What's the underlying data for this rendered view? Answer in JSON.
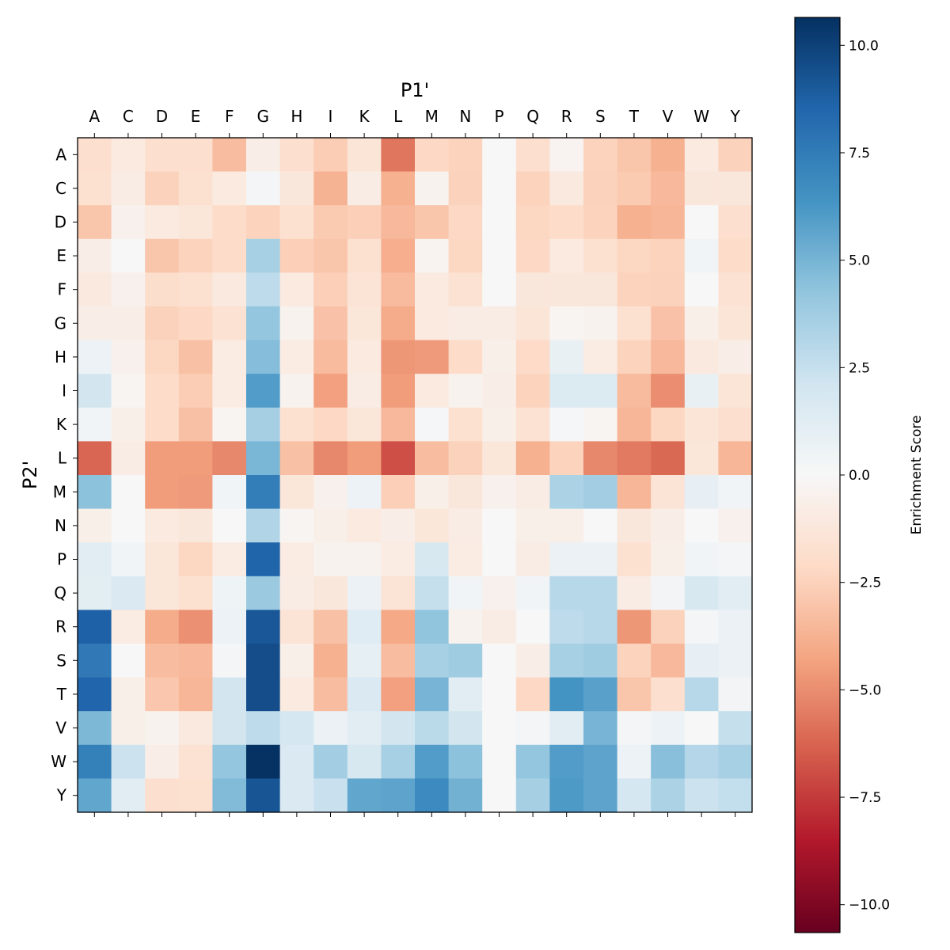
{
  "chart_data": {
    "type": "heatmap",
    "title": "",
    "xlabel": "P1'",
    "ylabel": "P2'",
    "x_categories": [
      "A",
      "C",
      "D",
      "E",
      "F",
      "G",
      "H",
      "I",
      "K",
      "L",
      "M",
      "N",
      "P",
      "Q",
      "R",
      "S",
      "T",
      "V",
      "W",
      "Y"
    ],
    "y_categories": [
      "A",
      "C",
      "D",
      "E",
      "F",
      "G",
      "H",
      "I",
      "K",
      "L",
      "M",
      "N",
      "P",
      "Q",
      "R",
      "S",
      "T",
      "V",
      "W",
      "Y"
    ],
    "x_axis_position": "top",
    "colormap": "RdBu",
    "vmin": -10.65,
    "vmax": 10.65,
    "colorbar": {
      "label": "Enrichment Score",
      "ticks": [
        10.0,
        7.5,
        5.0,
        2.5,
        0.0,
        -2.5,
        -5.0,
        -7.5,
        -10.0
      ],
      "tick_labels": [
        "10.0",
        "7.5",
        "5.0",
        "2.5",
        "0.0",
        "−2.5",
        "−5.0",
        "−7.5",
        "−10.0"
      ]
    },
    "values": [
      [
        -1.8,
        -1,
        -1.8,
        -1.8,
        -3.3,
        -0.7,
        -1.8,
        -2.7,
        -1.4,
        -5.7,
        -2.2,
        -2.4,
        0,
        -1.8,
        -0.3,
        -2.4,
        -3,
        -3.8,
        -1,
        -2.5
      ],
      [
        -1.7,
        -0.8,
        -2.5,
        -1.7,
        -1,
        0.2,
        -1.2,
        -3.7,
        -0.8,
        -3.8,
        -0.4,
        -2.5,
        0,
        -2.4,
        -1.1,
        -2.5,
        -2.8,
        -3.5,
        -1.2,
        -1.2
      ],
      [
        -3,
        -0.5,
        -1,
        -1.3,
        -2,
        -2.4,
        -1.7,
        -2.8,
        -2.6,
        -3.5,
        -3,
        -2.2,
        0,
        -2.3,
        -2,
        -2.4,
        -3.8,
        -3.6,
        0,
        -1.8
      ],
      [
        -0.7,
        0,
        -3,
        -2.4,
        -2,
        3.5,
        -2.6,
        -3,
        -1.7,
        -3.9,
        -0.3,
        -2.3,
        0,
        -2.2,
        -1,
        -1.7,
        -2.3,
        -2.4,
        0.4,
        -2
      ],
      [
        -1.1,
        -0.5,
        -1.9,
        -1.7,
        -1.1,
        2.8,
        -1,
        -2.6,
        -1.5,
        -3.4,
        -1,
        -1.6,
        0,
        -1.2,
        -1.2,
        -1.2,
        -2.4,
        -2.5,
        0,
        -1.6
      ],
      [
        -0.7,
        -0.7,
        -2.5,
        -2.2,
        -1.6,
        4.2,
        -0.4,
        -3.1,
        -1.3,
        -4,
        -1,
        -0.8,
        -0.8,
        -1.4,
        -0.2,
        -0.4,
        -1.7,
        -3.1,
        -0.6,
        -1.4
      ],
      [
        0.6,
        -0.5,
        -2.3,
        -3.2,
        -0.9,
        4.6,
        -0.9,
        -3.4,
        -1,
        -4.7,
        -4.6,
        -2,
        -0.6,
        -2.1,
        0.8,
        -0.9,
        -2.4,
        -3.5,
        -1.1,
        -0.7
      ],
      [
        2,
        -0.2,
        -2,
        -2.7,
        -0.9,
        6,
        -0.4,
        -4.4,
        -0.8,
        -4.5,
        -1,
        -0.4,
        -0.7,
        -2.4,
        1.5,
        1.5,
        -3.4,
        -5,
        0.8,
        -1.4
      ],
      [
        0.4,
        -0.6,
        -2,
        -3.2,
        -0.2,
        3.6,
        -1.7,
        -2.2,
        -1.3,
        -3.5,
        0.1,
        -1.7,
        -0.6,
        -1.6,
        0.1,
        -0.2,
        -3.6,
        -2.3,
        -1.4,
        -1.8
      ],
      [
        -6.2,
        -0.8,
        -4.5,
        -4.5,
        -5.2,
        4.9,
        -3.2,
        -5.2,
        -4.5,
        -6.9,
        -3.3,
        -2.5,
        -1.3,
        -3.8,
        -2.4,
        -5.2,
        -5.6,
        -6.1,
        -1.3,
        -3.6
      ],
      [
        4.4,
        0,
        -4.5,
        -4.6,
        0.4,
        7.4,
        -1.3,
        -0.5,
        0.6,
        -2.6,
        -0.6,
        -1.2,
        -0.5,
        -0.8,
        3.4,
        3.7,
        -3.6,
        -1.5,
        0.9,
        0.4
      ],
      [
        -0.6,
        0,
        -1,
        -1.2,
        0,
        3.2,
        -0.2,
        -0.6,
        -1,
        -0.7,
        -1.3,
        -0.8,
        0,
        -0.6,
        -0.6,
        0,
        -1.2,
        -0.7,
        0,
        -0.5
      ],
      [
        1.2,
        0.4,
        -1.3,
        -2.3,
        -0.9,
        8.6,
        -0.9,
        -0.4,
        -0.4,
        -0.9,
        1.8,
        -0.9,
        0,
        -0.8,
        0.7,
        0.7,
        -1.7,
        -0.6,
        0.4,
        0.2
      ],
      [
        1.1,
        1.6,
        -1.3,
        -1.7,
        0.5,
        4,
        -0.8,
        -1.2,
        0.7,
        -1.5,
        2.5,
        0.4,
        -0.5,
        0.4,
        3,
        3,
        -0.8,
        0.3,
        1.8,
        1.2
      ],
      [
        8.7,
        -0.9,
        -4,
        -4.9,
        0.6,
        9.1,
        -1.5,
        -3.2,
        1.3,
        -4.1,
        4.3,
        -0.4,
        -0.8,
        0,
        2.8,
        3,
        -4.7,
        -2.5,
        0.2,
        0.7
      ],
      [
        7.6,
        0,
        -3.3,
        -3.5,
        0.2,
        9.5,
        -0.6,
        -3.8,
        1,
        -3.3,
        3.5,
        3.8,
        0,
        -0.7,
        3.5,
        3.8,
        -2.4,
        -3.5,
        0.9,
        0.7
      ],
      [
        8.5,
        -0.6,
        -2.9,
        -3.6,
        2,
        9.5,
        -1,
        -3.3,
        1.6,
        -4.4,
        5,
        1.2,
        0,
        -2.2,
        6.4,
        5.8,
        -3,
        -1.8,
        3,
        0.3
      ],
      [
        4.8,
        -0.6,
        -0.4,
        -1.1,
        2,
        2.8,
        1.9,
        0.7,
        1.2,
        2,
        2.9,
        2,
        0,
        0.2,
        1.2,
        5,
        0.2,
        0.6,
        0,
        2.5
      ],
      [
        7.3,
        2.3,
        -0.7,
        -1.6,
        4.2,
        10.6,
        1.6,
        3.7,
        1.8,
        3.5,
        6,
        4.4,
        0,
        4.2,
        6,
        5.7,
        0.6,
        4.5,
        3.1,
        3.5
      ],
      [
        5.6,
        1.2,
        -1.8,
        -1.7,
        4.7,
        9.2,
        1.6,
        2.4,
        5.6,
        5.7,
        6.8,
        5.1,
        0,
        3.6,
        6.1,
        5.7,
        1.9,
        3.4,
        2.3,
        2.6
      ]
    ]
  }
}
